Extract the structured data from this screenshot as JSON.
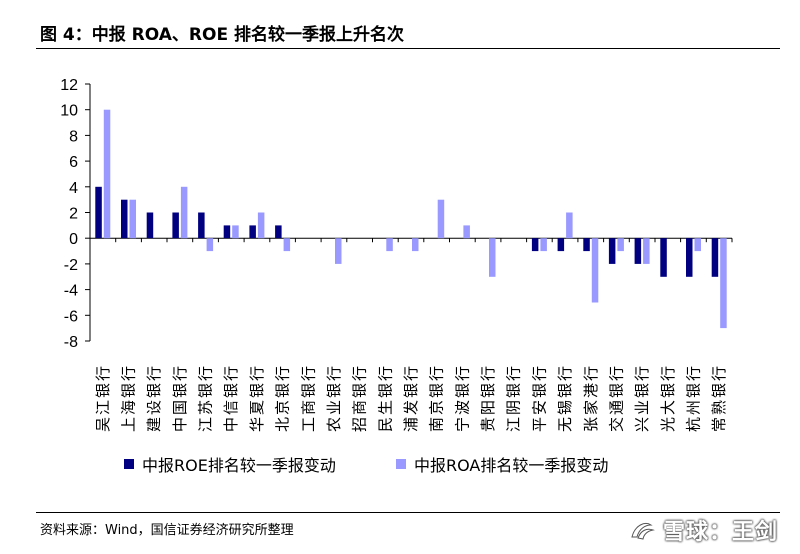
{
  "header": {
    "title": "图 4：中报 ROA、ROE 排名较一季报上升名次"
  },
  "footer": {
    "source": "资料来源：Wind，国信证券经济研究所整理"
  },
  "watermark": {
    "text": "雪球：王剑"
  },
  "chart_data": {
    "type": "bar",
    "categories": [
      "吴江银行",
      "上海银行",
      "建设银行",
      "中国银行",
      "江苏银行",
      "中信银行",
      "华夏银行",
      "北京银行",
      "工商银行",
      "农业银行",
      "招商银行",
      "民生银行",
      "浦发银行",
      "南京银行",
      "宁波银行",
      "贵阳银行",
      "江阴银行",
      "平安银行",
      "无锡银行",
      "张家港行",
      "交通银行",
      "兴业银行",
      "光大银行",
      "杭州银行",
      "常熟银行"
    ],
    "series": [
      {
        "name": "中报ROE排名较一季报变动",
        "color": "#000080",
        "values": [
          4,
          3,
          2,
          2,
          2,
          1,
          1,
          1,
          0,
          0,
          0,
          0,
          0,
          0,
          0,
          0,
          0,
          -1,
          -1,
          -1,
          -2,
          -2,
          -3,
          -3,
          -3
        ]
      },
      {
        "name": "中报ROA排名较一季报变动",
        "color": "#9999ff",
        "values": [
          10,
          3,
          0,
          4,
          -1,
          1,
          2,
          -1,
          0,
          -2,
          0,
          -1,
          -1,
          3,
          1,
          -3,
          0,
          -1,
          2,
          -5,
          -1,
          -2,
          0,
          -1,
          -7
        ]
      }
    ],
    "yticks": [
      12,
      10,
      8,
      6,
      4,
      2,
      0,
      -2,
      -4,
      -6,
      -8
    ],
    "ylim": [
      -8,
      12
    ],
    "grid": false,
    "legend_position": "bottom"
  }
}
